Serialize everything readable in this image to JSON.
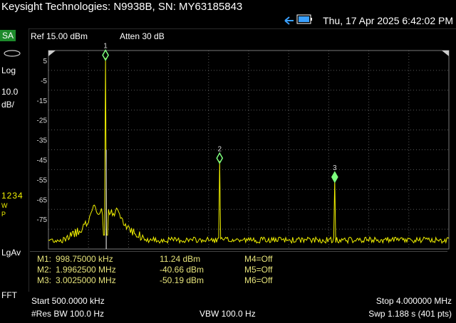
{
  "header": {
    "title": "Keysight Technologies: N9938B, SN: MY63185843",
    "datetime": "Thu, 17 Apr 2025 6:42:02 PM",
    "icons": [
      "usb-icon",
      "battery-icon"
    ]
  },
  "sidebar": {
    "mode": "SA",
    "scale_type": "Log",
    "scale_value": "10.0",
    "scale_unit": "dB/",
    "trace_numbers": "1234",
    "trace_w": "W",
    "trace_p": "P",
    "detector": "LgAv",
    "fft": "FFT"
  },
  "settings": {
    "ref_level": "Ref 15.00 dBm",
    "attenuation": "Atten 30 dB"
  },
  "y_axis_ticks": [
    "5",
    "-5",
    "-15",
    "-25",
    "-35",
    "-45",
    "-55",
    "-65",
    "-75"
  ],
  "markers": [
    {
      "id": "1",
      "label": "M1:",
      "freq": "998.75000 kHz",
      "level": "11.24 dBm"
    },
    {
      "id": "2",
      "label": "M2:",
      "freq": "1.9962500 MHz",
      "level": "-40.66 dBm"
    },
    {
      "id": "3",
      "label": "M3:",
      "freq": "3.0025000 MHz",
      "level": "-50.19 dBm"
    }
  ],
  "markers_off": [
    "M4=Off",
    "M5=Off",
    "M6=Off"
  ],
  "footer": {
    "start": "Start 500.0000 kHz",
    "stop": "Stop 4.000000 MHz",
    "res_bw": "#Res BW 100.0  Hz",
    "vbw": "VBW 100.0  Hz",
    "sweep": "Swp 1.188  s (401 pts)"
  },
  "chart_data": {
    "type": "line",
    "xlim": [
      0.5,
      4.0
    ],
    "ylim": [
      -85,
      15
    ],
    "x_unit": "MHz",
    "y_unit": "dBm",
    "grid": true,
    "colors": {
      "trace": "#f0f000",
      "marker": "#7dff7d",
      "grid": "#5a5a5a"
    },
    "series": [
      {
        "peaks": [
          {
            "x": 0.99875,
            "y": 11.24
          },
          {
            "x": 1.99625,
            "y": -40.66
          },
          {
            "x": 3.0025,
            "y": -50.19
          }
        ],
        "shoulders": [
          {
            "x": 0.9,
            "y": -63
          },
          {
            "x": 1.1,
            "y": -64
          }
        ],
        "noise_floor": -82
      }
    ]
  }
}
